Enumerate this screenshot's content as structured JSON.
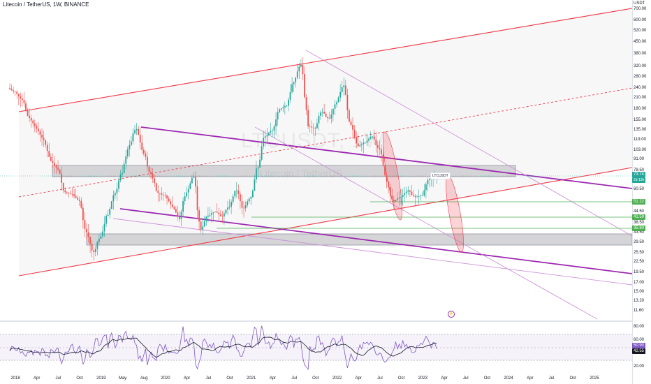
{
  "header": {
    "title": "Litecoin / TetherUS, 1W, BINANCE"
  },
  "watermark": {
    "symbol": "LTCUSDT, 1W",
    "name": "Litecoin / TetherUS"
  },
  "legend_tag": "LTCUSDT",
  "current_price": "73.74",
  "countdown": "2d 13h",
  "price_axis": {
    "unit": "USDT",
    "ticks": [
      "700.00",
      "600.00",
      "520.00",
      "450.00",
      "380.00",
      "320.00",
      "280.00",
      "240.00",
      "210.00",
      "180.00",
      "155.00",
      "135.00",
      "119.00",
      "103.00",
      "91.00",
      "78.50",
      "60.50",
      "44.50",
      "38.50",
      "33.50",
      "29.50",
      "25.50",
      "22.50",
      "19.50",
      "17.00",
      "15.00",
      "13.20",
      "11.60"
    ],
    "highlight_levels": [
      {
        "value": "51.22",
        "color": "#4caf50"
      },
      {
        "value": "41.59",
        "color": "#4caf50"
      },
      {
        "value": "35.80",
        "color": "#4caf50"
      }
    ]
  },
  "time_axis": {
    "ticks": [
      "2018",
      "Apr",
      "Jul",
      "Oct",
      "2019",
      "May",
      "Aug",
      "2020",
      "Apr",
      "Jul",
      "Oct",
      "2021",
      "Apr",
      "Jul",
      "Oct",
      "2022",
      "Apr",
      "Jul",
      "Oct",
      "2023",
      "Apr",
      "Jul",
      "Oct",
      "2024",
      "Apr",
      "Jul",
      "Oct",
      "2025"
    ]
  },
  "rsi_axis": {
    "ticks": [
      "80.00",
      "60.00",
      "40.00",
      "20.00"
    ],
    "tags": [
      {
        "value": "50.90",
        "color": "#7e57c2"
      },
      {
        "value": "42.55",
        "color": "#131722"
      }
    ]
  },
  "colors": {
    "up": "#26a69a",
    "down": "#ef5350",
    "channel": "#f23645",
    "trend_dark": "#9c27b0",
    "trend_light": "#ce93d8",
    "zone": "#c8c8c8",
    "rsi": "#7e57c2",
    "signal": "#131722"
  },
  "chart_data": {
    "type": "candlestick",
    "symbol": "LTCUSDT",
    "interval": "1W",
    "weekly_closes_by_month": [
      [
        "2018-01",
        230
      ],
      [
        "2018-02",
        205
      ],
      [
        "2018-03",
        160
      ],
      [
        "2018-04",
        140
      ],
      [
        "2018-05",
        120
      ],
      [
        "2018-06",
        90
      ],
      [
        "2018-07",
        80
      ],
      [
        "2018-08",
        58
      ],
      [
        "2018-09",
        57
      ],
      [
        "2018-10",
        52
      ],
      [
        "2018-11",
        34
      ],
      [
        "2018-12",
        26
      ],
      [
        "2019-01",
        32
      ],
      [
        "2019-02",
        43
      ],
      [
        "2019-03",
        58
      ],
      [
        "2019-04",
        76
      ],
      [
        "2019-05",
        110
      ],
      [
        "2019-06",
        138
      ],
      [
        "2019-07",
        100
      ],
      [
        "2019-08",
        75
      ],
      [
        "2019-09",
        58
      ],
      [
        "2019-10",
        56
      ],
      [
        "2019-11",
        48
      ],
      [
        "2019-12",
        41
      ],
      [
        "2020-01",
        58
      ],
      [
        "2020-02",
        72
      ],
      [
        "2020-03",
        36
      ],
      [
        "2020-04",
        43
      ],
      [
        "2020-05",
        45
      ],
      [
        "2020-06",
        42
      ],
      [
        "2020-07",
        48
      ],
      [
        "2020-08",
        60
      ],
      [
        "2020-09",
        47
      ],
      [
        "2020-10",
        55
      ],
      [
        "2020-11",
        82
      ],
      [
        "2020-12",
        125
      ],
      [
        "2021-01",
        135
      ],
      [
        "2021-02",
        180
      ],
      [
        "2021-03",
        190
      ],
      [
        "2021-04",
        260
      ],
      [
        "2021-05",
        330
      ],
      [
        "2021-06",
        150
      ],
      [
        "2021-07",
        140
      ],
      [
        "2021-08",
        175
      ],
      [
        "2021-09",
        160
      ],
      [
        "2021-10",
        200
      ],
      [
        "2021-11",
        250
      ],
      [
        "2021-12",
        145
      ],
      [
        "2022-01",
        110
      ],
      [
        "2022-02",
        115
      ],
      [
        "2022-03",
        125
      ],
      [
        "2022-04",
        105
      ],
      [
        "2022-05",
        65
      ],
      [
        "2022-06",
        52
      ],
      [
        "2022-07",
        55
      ],
      [
        "2022-08",
        60
      ],
      [
        "2022-09",
        55
      ],
      [
        "2022-10",
        56
      ],
      [
        "2022-11",
        70
      ],
      [
        "2022-12",
        73.74
      ]
    ],
    "horizontal_levels": [
      51.22,
      41.59,
      35.8
    ],
    "zones": [
      [
        78.5,
        91
      ],
      [
        28,
        33.5
      ]
    ],
    "rsi": {
      "upper": 70,
      "lower": 30,
      "value": 50.9,
      "signal": 42.55
    }
  }
}
